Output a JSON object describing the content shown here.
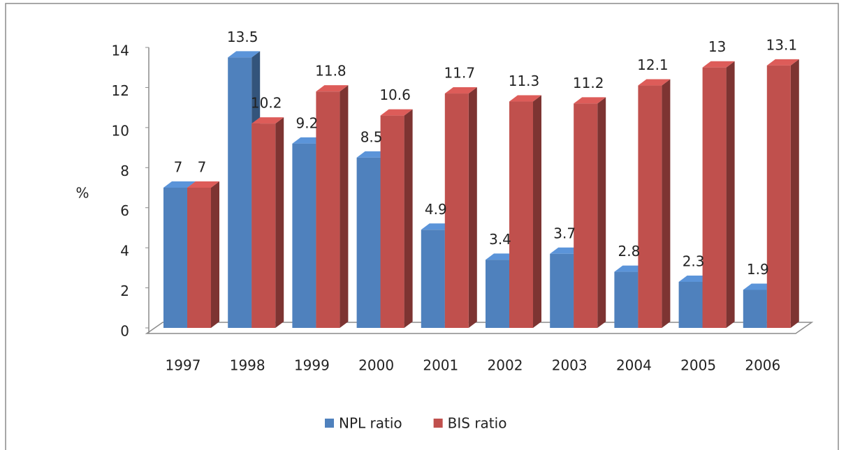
{
  "chart_data": {
    "type": "bar3d",
    "y_label": "%",
    "categories": [
      "1997",
      "1998",
      "1999",
      "2000",
      "2001",
      "2002",
      "2003",
      "2004",
      "2005",
      "2006"
    ],
    "series": [
      {
        "name": "NPL ratio",
        "color": "#4f81bd",
        "values": [
          7,
          13.5,
          9.2,
          8.5,
          4.9,
          3.4,
          3.7,
          2.8,
          2.3,
          1.9
        ]
      },
      {
        "name": "BIS ratio",
        "color": "#c0504d",
        "values": [
          7,
          10.2,
          11.8,
          10.6,
          11.7,
          11.3,
          11.2,
          12.1,
          13,
          13.1
        ]
      }
    ],
    "ylim": [
      0,
      14
    ],
    "yticks": [
      0,
      2,
      4,
      6,
      8,
      10,
      12,
      14
    ],
    "legend": "bottom"
  }
}
